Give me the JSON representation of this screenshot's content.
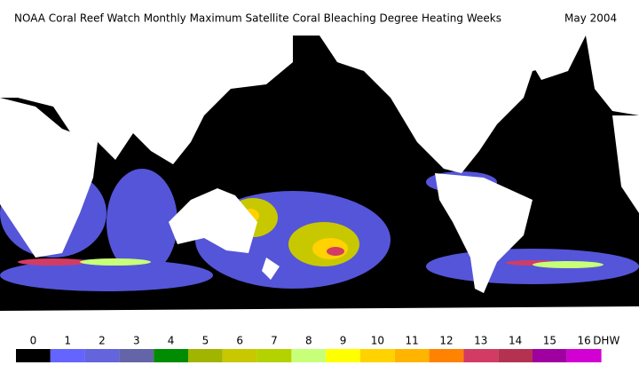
{
  "header": {
    "title": "NOAA Coral Reef Watch Monthly Maximum Satellite Coral Bleaching Degree Heating Weeks",
    "date": "May 2004"
  },
  "colorbar": {
    "ticks": [
      0,
      1,
      2,
      3,
      4,
      5,
      6,
      7,
      8,
      9,
      10,
      11,
      12,
      13,
      14,
      15,
      16
    ],
    "unit": "DHW",
    "colors": [
      "#000000",
      "#6464ff",
      "#6464dc",
      "#6464a8",
      "#008c00",
      "#a0b400",
      "#c8c800",
      "#b4d200",
      "#c8ff78",
      "#ffff00",
      "#ffd200",
      "#ffb400",
      "#ff8200",
      "#d23c64",
      "#b43250",
      "#a000a0",
      "#d200d2"
    ]
  }
}
